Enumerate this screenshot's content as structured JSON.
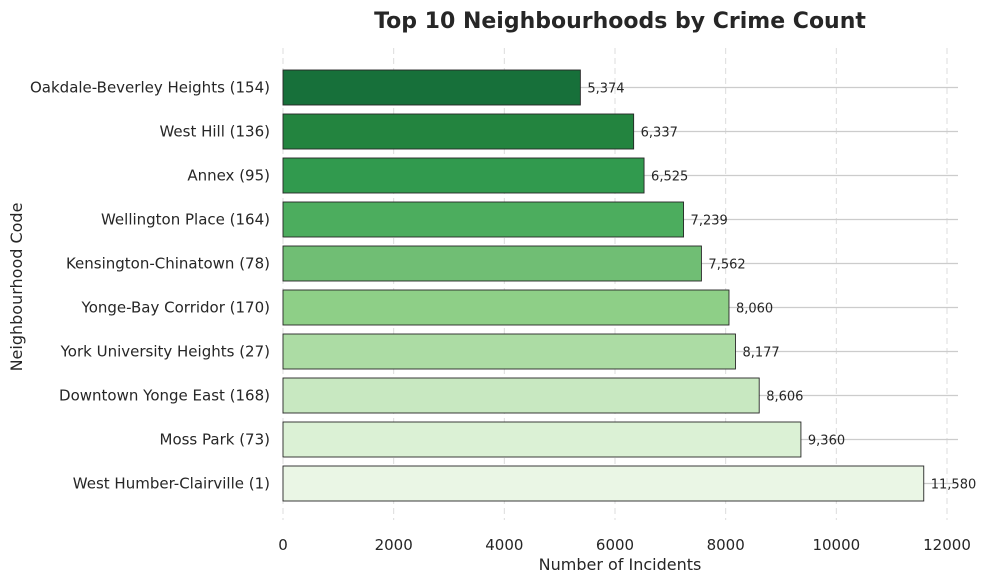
{
  "chart_data": {
    "type": "bar",
    "orientation": "horizontal",
    "title": "Top 10 Neighbourhoods by Crime Count",
    "xlabel": "Number of Incidents",
    "ylabel": "Neighbourhood Code",
    "xlim": [
      0,
      12000
    ],
    "x_ticks": [
      0,
      2000,
      4000,
      6000,
      8000,
      10000,
      12000
    ],
    "grid": true,
    "categories": [
      "Oakdale-Beverley Heights (154)",
      "West Hill (136)",
      "Annex (95)",
      "Wellington Place (164)",
      "Kensington-Chinatown (78)",
      "Yonge-Bay Corridor (170)",
      "York University Heights (27)",
      "Downtown Yonge East (168)",
      "Moss Park (73)",
      "West Humber-Clairville (1)"
    ],
    "values": [
      5374,
      6337,
      6525,
      7239,
      7562,
      8060,
      8177,
      8606,
      9360,
      11580
    ],
    "value_labels": [
      "5,374",
      "6,337",
      "6,525",
      "7,239",
      "7,562",
      "8,060",
      "8,177",
      "8,606",
      "9,360",
      "11,580"
    ],
    "colors": [
      "#17703a",
      "#23843f",
      "#319a4e",
      "#4cad5e",
      "#70be74",
      "#8ecf87",
      "#acdca4",
      "#c8e8c1",
      "#dbf1d5",
      "#eaf6e5"
    ]
  }
}
